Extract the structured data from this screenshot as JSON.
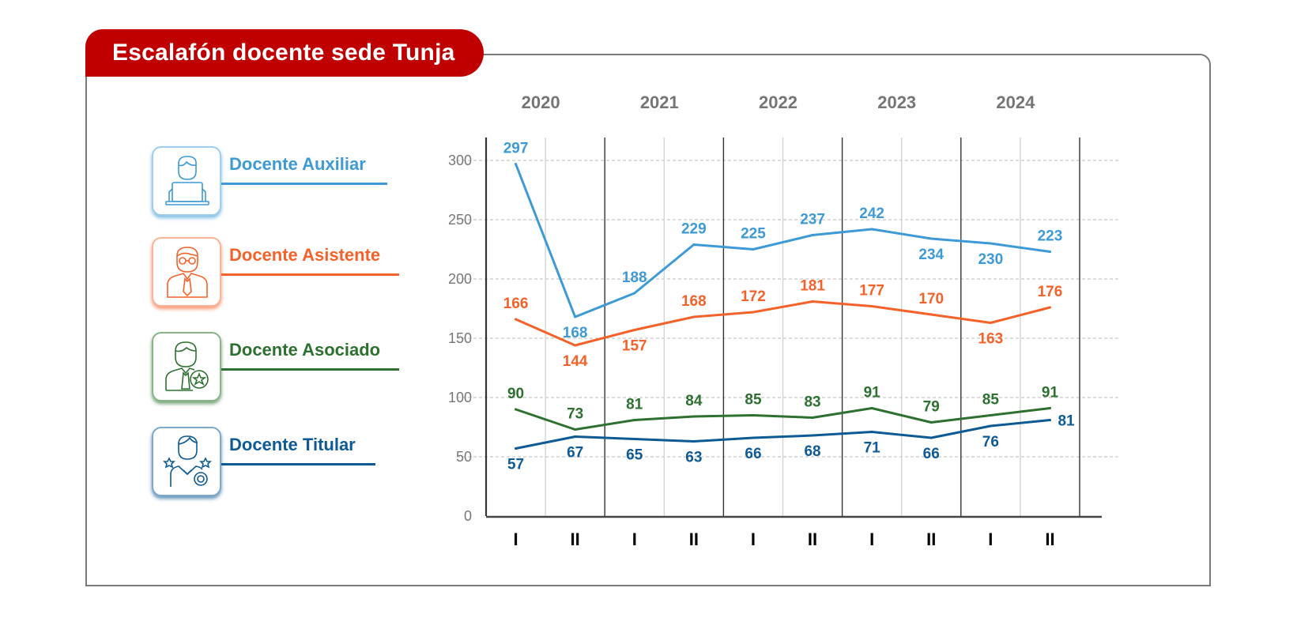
{
  "title": "Escalafón docente sede Tunja",
  "legend": [
    {
      "label": "Docente Auxiliar",
      "color": "#3d9ad6",
      "icon": "teacher-laptop-icon"
    },
    {
      "label": "Docente Asistente",
      "color": "#f4622a",
      "icon": "teacher-glasses-tie-icon"
    },
    {
      "label": "Docente Asociado",
      "color": "#2e7030",
      "icon": "teacher-star-badge-icon"
    },
    {
      "label": "Docente Titular",
      "color": "#0d5a94",
      "icon": "teacher-award-stars-icon"
    }
  ],
  "chart_data": {
    "type": "line",
    "title": "Escalafón docente sede Tunja",
    "xlabel": "",
    "ylabel": "",
    "ylim": [
      0,
      300
    ],
    "yticks": [
      0,
      50,
      100,
      150,
      200,
      250,
      300
    ],
    "grid": true,
    "legend_position": "left",
    "years": [
      "2020",
      "2021",
      "2022",
      "2023",
      "2024"
    ],
    "categories": [
      "I",
      "II",
      "I",
      "II",
      "I",
      "II",
      "I",
      "II",
      "I",
      "II"
    ],
    "series": [
      {
        "name": "Docente Auxiliar",
        "color": "#3d9ad6",
        "values": [
          297,
          168,
          188,
          229,
          225,
          237,
          242,
          234,
          230,
          223
        ]
      },
      {
        "name": "Docente Asistente",
        "color": "#f4622a",
        "values": [
          166,
          144,
          157,
          168,
          172,
          181,
          177,
          170,
          163,
          176
        ]
      },
      {
        "name": "Docente Asociado",
        "color": "#2e7030",
        "values": [
          90,
          73,
          81,
          84,
          85,
          83,
          91,
          79,
          85,
          91
        ]
      },
      {
        "name": "Docente Titular",
        "color": "#0d5a94",
        "values": [
          57,
          67,
          65,
          63,
          66,
          68,
          71,
          66,
          76,
          81
        ]
      }
    ]
  }
}
